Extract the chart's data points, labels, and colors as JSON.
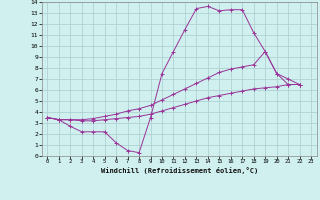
{
  "xlabel": "Windchill (Refroidissement éolien,°C)",
  "bg_color": "#cff0ee",
  "grid_color": "#aacccc",
  "line_color": "#993399",
  "xlim": [
    -0.5,
    23.5
  ],
  "ylim": [
    0,
    14
  ],
  "xticks": [
    0,
    1,
    2,
    3,
    4,
    5,
    6,
    7,
    8,
    9,
    10,
    11,
    12,
    13,
    14,
    15,
    16,
    17,
    18,
    19,
    20,
    21,
    22,
    23
  ],
  "yticks": [
    0,
    1,
    2,
    3,
    4,
    5,
    6,
    7,
    8,
    9,
    10,
    11,
    12,
    13,
    14
  ],
  "series": [
    {
      "x": [
        0,
        1,
        2,
        3,
        4,
        5,
        6,
        7,
        8,
        9,
        10,
        11,
        12,
        13,
        14,
        15,
        16,
        17,
        18,
        19,
        20,
        21,
        22
      ],
      "y": [
        3.5,
        3.3,
        2.7,
        2.2,
        2.2,
        2.2,
        1.2,
        0.5,
        0.3,
        3.5,
        7.5,
        9.5,
        11.5,
        13.4,
        13.6,
        13.2,
        13.3,
        13.3,
        11.2,
        9.5,
        7.5,
        6.5,
        6.5
      ]
    },
    {
      "x": [
        0,
        1,
        2,
        3,
        4,
        5,
        6,
        7,
        8,
        9,
        10,
        11,
        12,
        13,
        14,
        15,
        16,
        17,
        18,
        19,
        20,
        21,
        22
      ],
      "y": [
        3.5,
        3.3,
        3.3,
        3.3,
        3.4,
        3.6,
        3.8,
        4.1,
        4.3,
        4.6,
        5.1,
        5.6,
        6.1,
        6.6,
        7.1,
        7.6,
        7.9,
        8.1,
        8.3,
        9.5,
        7.5,
        7.0,
        6.5
      ]
    },
    {
      "x": [
        0,
        1,
        2,
        3,
        4,
        5,
        6,
        7,
        8,
        9,
        10,
        11,
        12,
        13,
        14,
        15,
        16,
        17,
        18,
        19,
        20,
        21,
        22
      ],
      "y": [
        3.5,
        3.3,
        3.3,
        3.2,
        3.2,
        3.3,
        3.4,
        3.5,
        3.6,
        3.8,
        4.1,
        4.4,
        4.7,
        5.0,
        5.3,
        5.5,
        5.7,
        5.9,
        6.1,
        6.2,
        6.3,
        6.5,
        6.5
      ]
    }
  ]
}
